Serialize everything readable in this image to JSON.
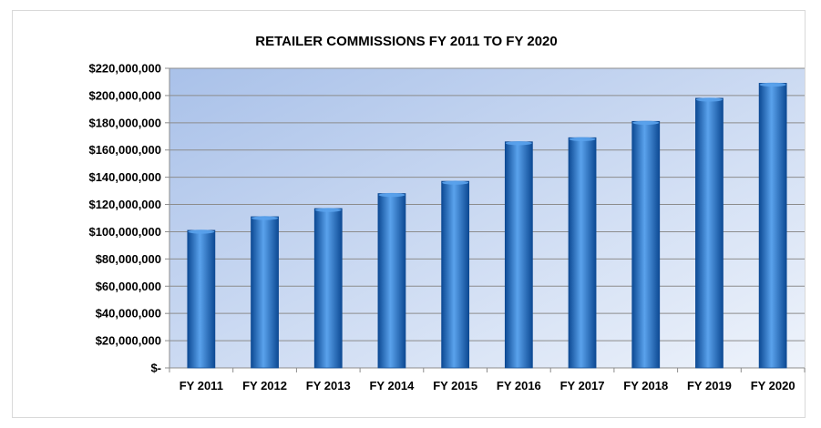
{
  "chart_data": {
    "type": "bar",
    "title": "RETAILER COMMISSIONS FY 2011 TO FY 2020",
    "xlabel": "",
    "ylabel": "",
    "categories": [
      "FY 2011",
      "FY 2012",
      "FY 2013",
      "FY 2014",
      "FY 2015",
      "FY 2016",
      "FY 2017",
      "FY 2018",
      "FY 2019",
      "FY 2020"
    ],
    "values": [
      101000000,
      111000000,
      117000000,
      128000000,
      137000000,
      166000000,
      169000000,
      181000000,
      198000000,
      209000000
    ],
    "ylim": [
      0,
      220000000
    ],
    "yticks": [
      0,
      20000000,
      40000000,
      60000000,
      80000000,
      100000000,
      120000000,
      140000000,
      160000000,
      180000000,
      200000000,
      220000000
    ],
    "ytick_labels": [
      "$-",
      "$20,000,000",
      "$40,000,000",
      "$60,000,000",
      "$80,000,000",
      "$100,000,000",
      "$120,000,000",
      "$140,000,000",
      "$160,000,000",
      "$180,000,000",
      "$200,000,000",
      "$220,000,000"
    ],
    "grid": true,
    "legend": "none",
    "colors": {
      "bar_main": "#1f6fc9",
      "bar_light": "#5aa2ec",
      "bar_dark": "#0d4a94",
      "plot_bg_start": "#a9c1e9",
      "plot_bg_end": "#eef3fb",
      "grid": "#8c8c8c"
    }
  }
}
